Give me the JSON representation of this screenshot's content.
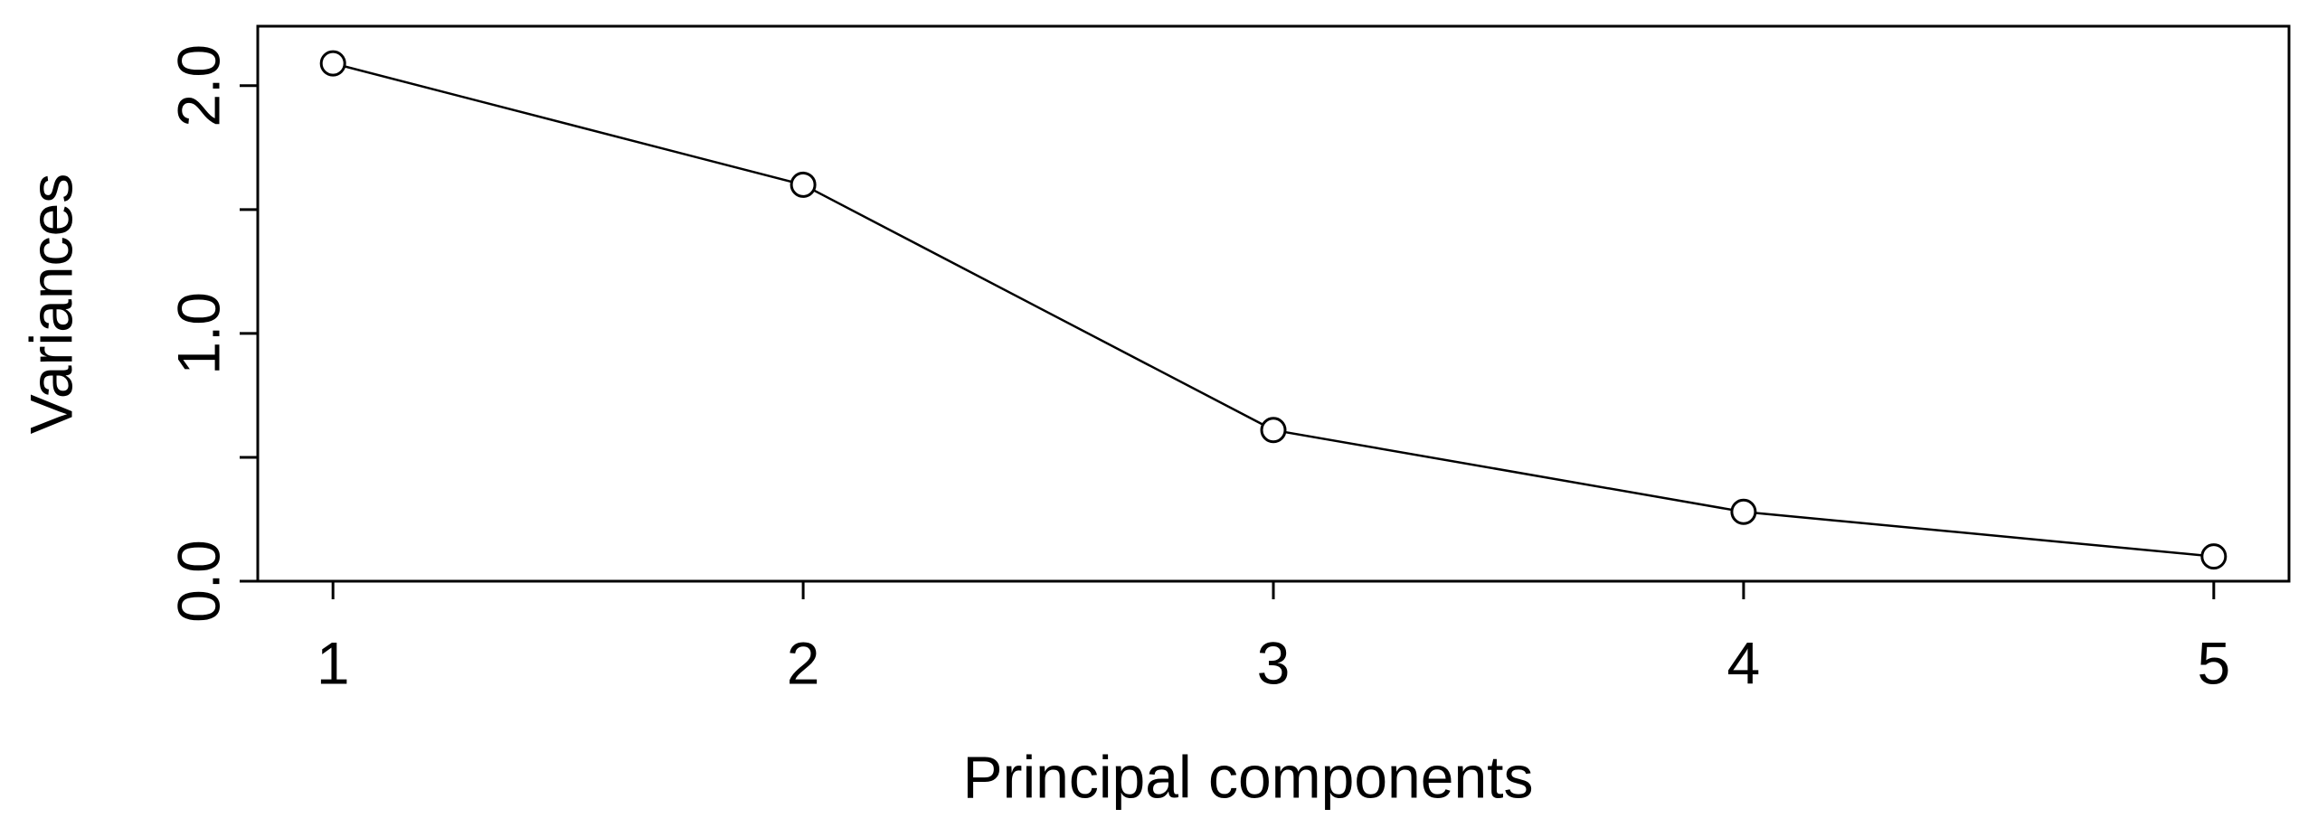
{
  "chart_data": {
    "type": "line",
    "xlabel": "Principal components",
    "ylabel": "Variances",
    "x": [
      1,
      2,
      3,
      4,
      5
    ],
    "series": [
      {
        "color": "#000000",
        "values": [
          2.09,
          1.6,
          0.61,
          0.28,
          0.1
        ]
      }
    ],
    "xlim": [
      0.84,
      5.16
    ],
    "xticks": [
      1,
      2,
      3,
      4,
      5
    ],
    "ylim": [
      0,
      2.24
    ],
    "yticks": [
      {
        "value": 0,
        "label": "0.0"
      },
      {
        "value": 0.5,
        "label": null
      },
      {
        "value": 1,
        "label": "1.0"
      },
      {
        "value": 1.5,
        "label": null
      },
      {
        "value": 2,
        "label": "2.0"
      }
    ],
    "grid": false
  }
}
